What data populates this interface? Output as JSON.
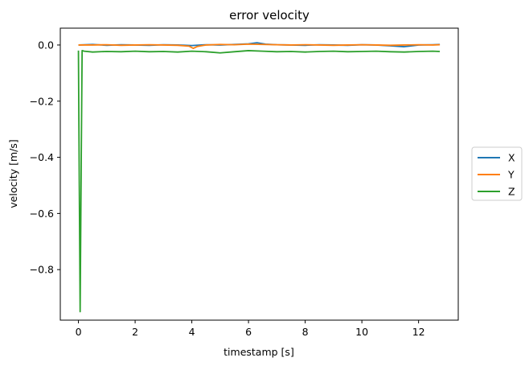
{
  "chart_data": {
    "type": "line",
    "title": "error velocity",
    "xlabel": "timestamp [s]",
    "ylabel": "velocity [m/s]",
    "xlim": [
      -0.64,
      13.4
    ],
    "ylim": [
      -0.98,
      0.06
    ],
    "xticks": [
      0,
      2,
      4,
      6,
      8,
      10,
      12
    ],
    "xtick_labels": [
      "0",
      "2",
      "4",
      "6",
      "8",
      "10",
      "12"
    ],
    "yticks": [
      0.0,
      -0.2,
      -0.4,
      -0.6,
      -0.8
    ],
    "ytick_labels": [
      "0.0",
      "−0.2",
      "−0.4",
      "−0.6",
      "−0.8"
    ],
    "grid": false,
    "legend_position": "center right (outside plot)",
    "series": [
      {
        "name": "X",
        "color": "#1f77b4",
        "x": [
          0.0,
          0.5,
          1.0,
          1.5,
          2.0,
          2.5,
          3.0,
          3.5,
          4.0,
          4.5,
          5.0,
          5.5,
          6.0,
          6.3,
          6.6,
          7.0,
          7.5,
          8.0,
          8.5,
          9.0,
          9.5,
          10.0,
          10.5,
          11.0,
          11.5,
          12.0,
          12.5,
          12.75
        ],
        "y": [
          0.0,
          0.002,
          -0.001,
          0.001,
          0.0,
          -0.001,
          0.001,
          0.0,
          -0.002,
          0.001,
          0.0,
          0.002,
          0.004,
          0.008,
          0.003,
          0.001,
          0.0,
          -0.001,
          0.001,
          0.0,
          -0.001,
          0.001,
          0.0,
          -0.003,
          -0.006,
          0.0,
          0.001,
          0.002
        ]
      },
      {
        "name": "Y",
        "color": "#ff7f0e",
        "x": [
          0.0,
          0.5,
          1.0,
          1.5,
          2.0,
          2.5,
          3.0,
          3.5,
          3.9,
          4.05,
          4.2,
          4.5,
          5.0,
          5.5,
          6.0,
          6.5,
          7.0,
          7.5,
          8.0,
          8.5,
          9.0,
          9.5,
          10.0,
          10.5,
          11.0,
          11.5,
          12.0,
          12.5,
          12.75
        ],
        "y": [
          0.0,
          0.0,
          0.001,
          -0.001,
          0.0,
          0.001,
          0.0,
          -0.001,
          -0.004,
          -0.012,
          -0.005,
          0.0,
          0.002,
          0.001,
          0.003,
          0.002,
          0.001,
          0.0,
          0.001,
          0.0,
          -0.001,
          0.0,
          0.001,
          0.0,
          -0.001,
          0.0,
          0.001,
          0.0,
          0.001
        ]
      },
      {
        "name": "Z",
        "color": "#2ca02c",
        "x": [
          0.0,
          0.03,
          0.06,
          0.1,
          0.13,
          0.2,
          0.5,
          1.0,
          1.5,
          2.0,
          2.5,
          3.0,
          3.5,
          4.0,
          4.5,
          5.0,
          5.5,
          6.0,
          6.5,
          7.0,
          7.5,
          8.0,
          8.5,
          9.0,
          9.5,
          10.0,
          10.5,
          11.0,
          11.5,
          12.0,
          12.5,
          12.75
        ],
        "y": [
          -0.02,
          -0.5,
          -0.95,
          -0.4,
          -0.02,
          -0.022,
          -0.025,
          -0.023,
          -0.024,
          -0.022,
          -0.024,
          -0.023,
          -0.025,
          -0.022,
          -0.024,
          -0.028,
          -0.024,
          -0.02,
          -0.022,
          -0.024,
          -0.023,
          -0.025,
          -0.023,
          -0.022,
          -0.024,
          -0.023,
          -0.022,
          -0.024,
          -0.025,
          -0.023,
          -0.022,
          -0.023
        ]
      }
    ]
  }
}
